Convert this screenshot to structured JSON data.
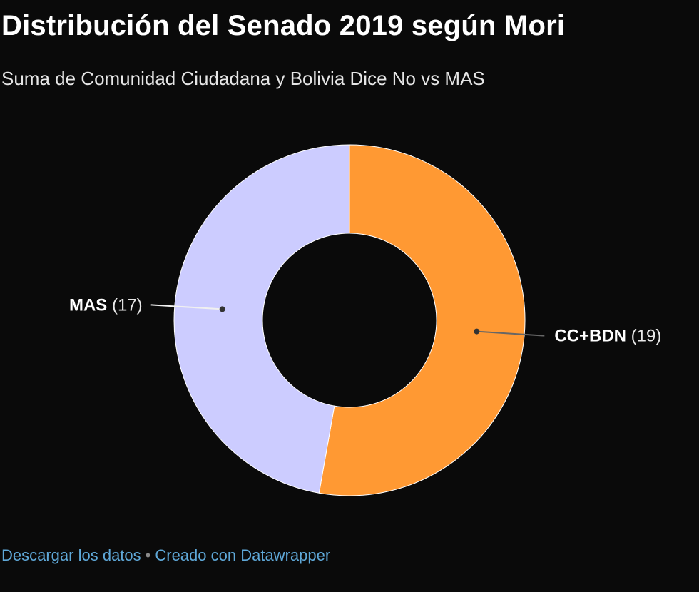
{
  "header": {
    "title": "Distribución del Senado 2019 según Mori",
    "subtitle": "Suma de Comunidad Ciudadana y Bolivia Dice No vs MAS"
  },
  "footer": {
    "download_link": "Descargar los datos",
    "separator": "•",
    "credit_link": "Creado con Datawrapper"
  },
  "colors": {
    "background": "#0a0a0a",
    "cc_bdn": "#ff9933",
    "mas": "#ccccff",
    "link": "#5fa8d8"
  },
  "chart_data": {
    "type": "pie",
    "variant": "donut",
    "title": "Distribución del Senado 2019 según Mori",
    "subtitle": "Suma de Comunidad Ciudadana y Bolivia Dice No vs MAS",
    "slices": [
      {
        "label": "CC+BDN",
        "value": 19,
        "value_label": "(19)",
        "color": "#ff9933"
      },
      {
        "label": "MAS",
        "value": 17,
        "value_label": "(17)",
        "color": "#ccccff"
      }
    ],
    "legend": "none"
  }
}
